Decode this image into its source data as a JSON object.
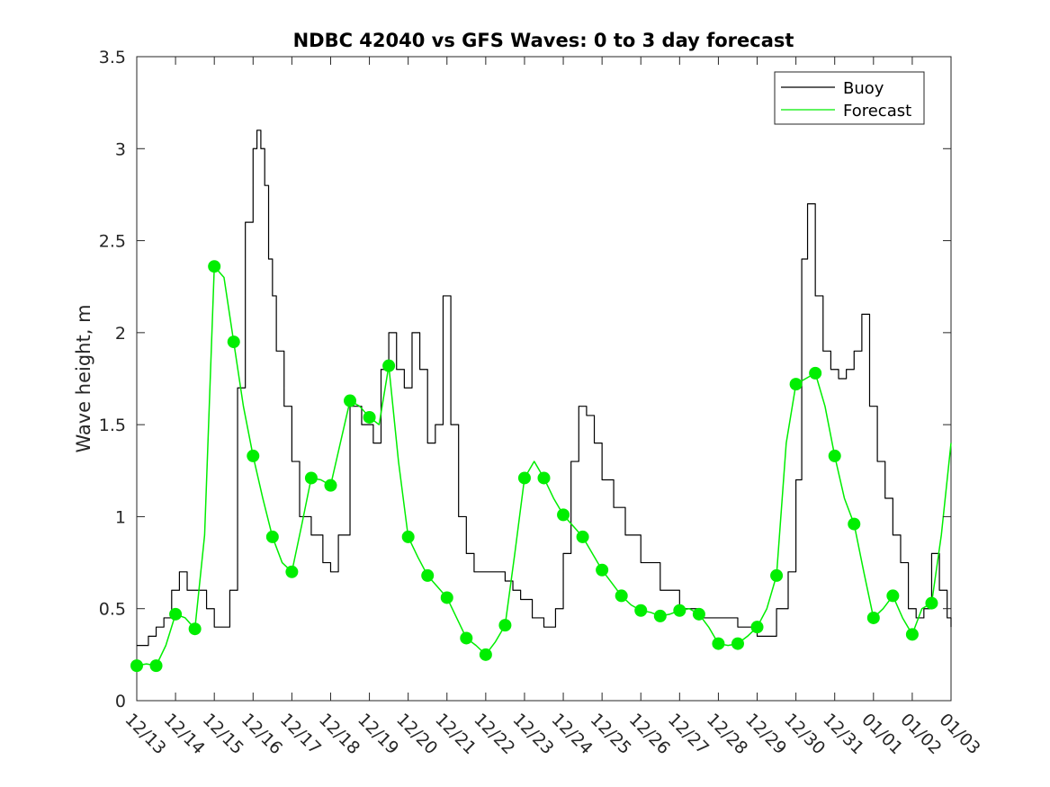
{
  "chart_data": {
    "type": "line",
    "title": "NDBC 42040 vs GFS Waves: 0 to 3 day forecast",
    "xlabel": "",
    "ylabel": "Wave height, m",
    "x_tick_labels": [
      "12/13",
      "12/14",
      "12/15",
      "12/16",
      "12/17",
      "12/18",
      "12/19",
      "12/20",
      "12/21",
      "12/22",
      "12/23",
      "12/24",
      "12/25",
      "12/26",
      "12/27",
      "12/28",
      "12/29",
      "12/30",
      "12/31",
      "01/01",
      "01/02",
      "01/03"
    ],
    "xlim": [
      0,
      21
    ],
    "ylim": [
      0,
      3.5
    ],
    "y_ticks": [
      0,
      0.5,
      1,
      1.5,
      2,
      2.5,
      3,
      3.5
    ],
    "y_tick_labels": [
      "0",
      "0.5",
      "1",
      "1.5",
      "2",
      "2.5",
      "3",
      "3.5"
    ],
    "grid": false,
    "legend_position": "top-right",
    "colors": {
      "buoy": "#000000",
      "forecast": "#00ee00",
      "axis": "#262626"
    },
    "legend": [
      {
        "label": "Buoy",
        "color": "#000000"
      },
      {
        "label": "Forecast",
        "color": "#00ee00"
      }
    ],
    "series": [
      {
        "name": "Buoy",
        "x": [
          0,
          0.3,
          0.5,
          0.7,
          0.9,
          1.1,
          1.3,
          1.6,
          1.8,
          2.0,
          2.4,
          2.6,
          2.8,
          3.0,
          3.1,
          3.2,
          3.3,
          3.4,
          3.5,
          3.6,
          3.8,
          4.0,
          4.2,
          4.5,
          4.8,
          5.0,
          5.2,
          5.5,
          5.8,
          6.1,
          6.3,
          6.5,
          6.7,
          6.9,
          7.1,
          7.3,
          7.5,
          7.7,
          7.9,
          8.1,
          8.3,
          8.5,
          8.7,
          8.9,
          9.1,
          9.3,
          9.5,
          9.7,
          9.9,
          10.2,
          10.5,
          10.8,
          11.0,
          11.2,
          11.4,
          11.6,
          11.8,
          12.0,
          12.3,
          12.6,
          13.0,
          13.5,
          14.0,
          14.5,
          15.0,
          15.5,
          16.0,
          16.5,
          16.8,
          17.0,
          17.15,
          17.3,
          17.5,
          17.7,
          17.9,
          18.1,
          18.3,
          18.5,
          18.7,
          18.9,
          19.1,
          19.3,
          19.5,
          19.7,
          19.9,
          20.1,
          20.3,
          20.5,
          20.7,
          20.9,
          21.0
        ],
        "values": [
          0.3,
          0.35,
          0.4,
          0.45,
          0.6,
          0.7,
          0.6,
          0.6,
          0.5,
          0.4,
          0.6,
          1.7,
          2.6,
          3.0,
          3.1,
          3.0,
          2.8,
          2.4,
          2.2,
          1.9,
          1.6,
          1.3,
          1.0,
          0.9,
          0.75,
          0.7,
          0.9,
          1.6,
          1.5,
          1.4,
          1.8,
          2.0,
          1.8,
          1.7,
          2.0,
          1.8,
          1.4,
          1.5,
          2.2,
          1.5,
          1.0,
          0.8,
          0.7,
          0.7,
          0.7,
          0.7,
          0.65,
          0.6,
          0.55,
          0.45,
          0.4,
          0.5,
          0.8,
          1.3,
          1.6,
          1.55,
          1.4,
          1.2,
          1.05,
          0.9,
          0.75,
          0.6,
          0.5,
          0.45,
          0.45,
          0.4,
          0.35,
          0.5,
          0.7,
          1.2,
          2.4,
          2.7,
          2.2,
          1.9,
          1.8,
          1.75,
          1.8,
          1.9,
          2.1,
          1.6,
          1.3,
          1.1,
          0.9,
          0.75,
          0.5,
          0.45,
          0.5,
          0.8,
          0.6,
          0.45,
          0.4
        ]
      },
      {
        "name": "Forecast",
        "x": [
          0,
          0.25,
          0.5,
          0.75,
          1.0,
          1.25,
          1.5,
          1.75,
          2.0,
          2.25,
          2.5,
          2.75,
          3.0,
          3.25,
          3.5,
          3.75,
          4.0,
          4.25,
          4.5,
          4.75,
          5.0,
          5.25,
          5.5,
          5.75,
          6.0,
          6.25,
          6.5,
          6.75,
          7.0,
          7.25,
          7.5,
          7.75,
          8.0,
          8.25,
          8.5,
          8.75,
          9.0,
          9.25,
          9.5,
          9.75,
          10.0,
          10.25,
          10.5,
          10.75,
          11.0,
          11.25,
          11.5,
          11.75,
          12.0,
          12.25,
          12.5,
          12.75,
          13.0,
          13.25,
          13.5,
          13.75,
          14.0,
          14.25,
          14.5,
          14.75,
          15.0,
          15.25,
          15.5,
          15.75,
          16.0,
          16.25,
          16.5,
          16.75,
          17.0,
          17.25,
          17.5,
          17.75,
          18.0,
          18.25,
          18.5,
          18.75,
          19.0,
          19.25,
          19.5,
          19.75,
          20.0,
          20.25,
          20.5,
          20.75,
          21.0
        ],
        "values": [
          0.19,
          0.2,
          0.19,
          0.3,
          0.47,
          0.45,
          0.39,
          0.9,
          2.36,
          2.3,
          1.95,
          1.6,
          1.33,
          1.1,
          0.89,
          0.75,
          0.7,
          0.95,
          1.21,
          1.2,
          1.17,
          1.4,
          1.63,
          1.6,
          1.54,
          1.5,
          1.82,
          1.3,
          0.89,
          0.78,
          0.68,
          0.62,
          0.56,
          0.45,
          0.34,
          0.3,
          0.25,
          0.32,
          0.41,
          0.8,
          1.21,
          1.3,
          1.21,
          1.1,
          1.01,
          0.95,
          0.89,
          0.8,
          0.71,
          0.64,
          0.57,
          0.52,
          0.49,
          0.48,
          0.46,
          0.47,
          0.49,
          0.5,
          0.47,
          0.4,
          0.31,
          0.3,
          0.31,
          0.35,
          0.4,
          0.5,
          0.68,
          1.4,
          1.72,
          1.75,
          1.78,
          1.6,
          1.33,
          1.1,
          0.96,
          0.7,
          0.45,
          0.5,
          0.57,
          0.45,
          0.36,
          0.5,
          0.53,
          0.9,
          1.4
        ]
      }
    ],
    "markers": {
      "x": [
        0,
        0.5,
        1.0,
        1.5,
        2.0,
        2.5,
        3.0,
        3.5,
        4.0,
        4.5,
        5.0,
        5.5,
        6.0,
        6.5,
        7.0,
        7.5,
        8.0,
        8.5,
        9.0,
        9.5,
        10.0,
        10.5,
        11.0,
        11.5,
        12.0,
        12.5,
        13.0,
        13.5,
        14.0,
        14.5,
        15.0,
        15.5,
        16.0,
        16.5,
        17.0,
        17.5,
        18.0,
        18.5,
        19.0,
        19.5,
        20.0,
        20.5
      ],
      "values": [
        0.19,
        0.19,
        0.47,
        0.39,
        2.36,
        1.95,
        1.33,
        0.89,
        0.7,
        1.21,
        1.17,
        1.63,
        1.54,
        1.82,
        0.89,
        0.68,
        0.56,
        0.34,
        0.25,
        0.41,
        1.21,
        1.21,
        1.01,
        0.89,
        0.71,
        0.57,
        0.49,
        0.46,
        0.49,
        0.47,
        0.31,
        0.31,
        0.4,
        0.68,
        1.72,
        1.78,
        1.33,
        0.96,
        0.45,
        0.57,
        0.36,
        0.53
      ]
    }
  }
}
